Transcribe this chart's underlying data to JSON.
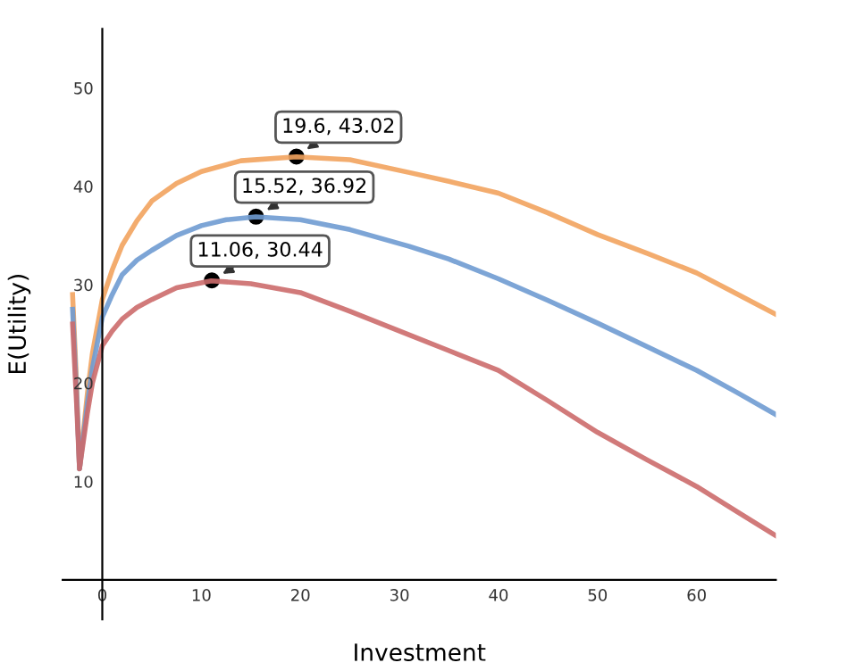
{
  "chart_data": {
    "type": "line",
    "xlabel": "Investment",
    "ylabel": "E(Utility)",
    "xlim": [
      -4,
      68
    ],
    "ylim": [
      -4,
      56
    ],
    "xticks": [
      0,
      10,
      20,
      30,
      40,
      50,
      60
    ],
    "yticks": [
      10,
      20,
      30,
      40,
      50
    ],
    "grid": false,
    "marker": "none",
    "line_style": "solid",
    "series": [
      {
        "color": "#f2a35e",
        "x": [
          -3,
          -2.6,
          -2.3,
          -1.5,
          -1,
          0,
          1,
          2,
          3.5,
          5,
          7.5,
          10,
          14,
          19.6,
          25,
          31,
          35,
          40,
          45,
          50,
          55,
          60,
          64,
          68
        ],
        "values": [
          29,
          20,
          11.3,
          19,
          23,
          28.5,
          31.5,
          34,
          36.5,
          38.5,
          40.3,
          41.5,
          42.6,
          43,
          42.7,
          41.4,
          40.5,
          39.3,
          37.3,
          35.1,
          33.2,
          31.2,
          29.1,
          27
        ]
      },
      {
        "color": "#6f9bd1",
        "x": [
          -3,
          -2.6,
          -2.3,
          -1.5,
          -1,
          0,
          1,
          2,
          3.5,
          5,
          7.5,
          10,
          12.5,
          15.5,
          20,
          25,
          31,
          35,
          40,
          45,
          50,
          55,
          60,
          64,
          68
        ],
        "values": [
          27.5,
          19,
          11.3,
          18,
          21.5,
          26.7,
          29,
          31,
          32.5,
          33.5,
          35,
          36,
          36.6,
          36.9,
          36.6,
          35.6,
          33.9,
          32.6,
          30.6,
          28.4,
          26.1,
          23.7,
          21.3,
          19.1,
          16.8
        ]
      },
      {
        "color": "#cc6b6b",
        "x": [
          -3,
          -2.6,
          -2.3,
          -1.5,
          -1,
          0,
          1,
          2,
          3.5,
          5,
          7.5,
          11,
          15,
          20,
          25,
          31,
          35,
          40,
          45,
          50,
          55,
          60,
          64,
          68
        ],
        "values": [
          26,
          18,
          11.3,
          17,
          20,
          23.8,
          25.3,
          26.5,
          27.7,
          28.5,
          29.7,
          30.4,
          30.1,
          29.2,
          27.3,
          24.9,
          23.3,
          21.3,
          18.2,
          15,
          12.2,
          9.5,
          7,
          4.5
        ]
      }
    ],
    "annotations": [
      {
        "text": "19.6, 43.02",
        "x": 19.6,
        "y": 43.02
      },
      {
        "text": "15.52, 36.92",
        "x": 15.52,
        "y": 36.92
      },
      {
        "text": "11.06, 30.44",
        "x": 11.06,
        "y": 30.44
      }
    ]
  }
}
